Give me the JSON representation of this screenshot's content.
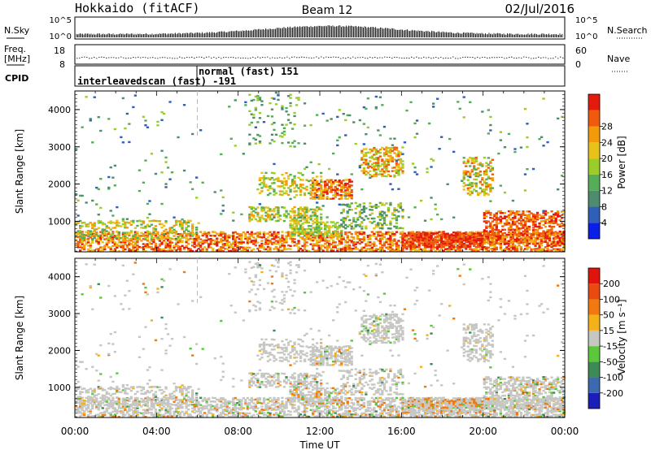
{
  "header": {
    "station": "Hokkaido (fitACF)",
    "beam": "Beam 12",
    "date": "02/Jul/2016"
  },
  "strips": {
    "nsky": {
      "label": "N.Sky",
      "ticks": [
        "10^5",
        "10^0"
      ]
    },
    "nsearch": {
      "label": "N.Search",
      "ticks": [
        "10^5",
        "10^0"
      ]
    },
    "freq": {
      "label_line1": "Freq.",
      "label_line2": "[MHz]",
      "ticks": [
        "18",
        "8"
      ]
    },
    "nave": {
      "label": "Nave",
      "ticks": [
        "60",
        "0"
      ]
    },
    "cpid": {
      "label": "CPID",
      "mode1": "interleavedscan (fast) -191",
      "mode2": "normal (fast) 151"
    }
  },
  "chart_data": [
    {
      "type": "heatmap",
      "name": "power",
      "ylabel": "Slant Range [km]",
      "xlabel": "Time UT",
      "x_ticks": [
        "00:00",
        "04:00",
        "08:00",
        "12:00",
        "16:00",
        "20:00",
        "00:00"
      ],
      "xlim_hours": [
        0,
        24
      ],
      "y_ticks": [
        1000,
        2000,
        3000,
        4000
      ],
      "ylim_km": [
        180,
        4500
      ],
      "colorbar": {
        "label": "Power [dB]",
        "ticks": [
          4,
          8,
          12,
          16,
          20,
          24,
          28
        ],
        "colors": [
          "#0b1ee8",
          "#2f5fb8",
          "#4d8c6c",
          "#55ad58",
          "#9acd2a",
          "#e8c21b",
          "#f39a0b",
          "#ef5a0e",
          "#e41b0c"
        ]
      }
    },
    {
      "type": "heatmap",
      "name": "velocity",
      "ylabel": "Slant Range [km]",
      "xlabel": "Time UT",
      "x_ticks": [
        "00:00",
        "04:00",
        "08:00",
        "12:00",
        "16:00",
        "20:00",
        "00:00"
      ],
      "xlim_hours": [
        0,
        24
      ],
      "y_ticks": [
        1000,
        2000,
        3000,
        4000
      ],
      "ylim_km": [
        180,
        4500
      ],
      "colorbar": {
        "label": "Velocity [m s⁻¹]",
        "ticks": [
          200,
          100,
          50,
          15,
          -15,
          -50,
          -100,
          -200
        ],
        "colors": [
          "#1a1fb8",
          "#3b6ab0",
          "#3e8a55",
          "#5ac83a",
          "#c6c6c2",
          "#f4b11a",
          "#f07a10",
          "#e84a10",
          "#e0140c"
        ]
      }
    }
  ]
}
